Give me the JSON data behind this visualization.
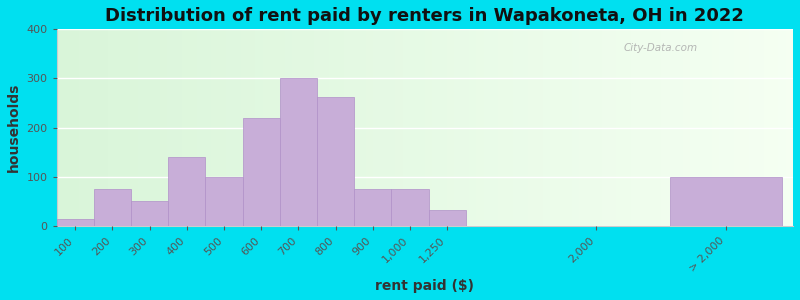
{
  "title": "Distribution of rent paid by renters in Wapakoneta, OH in 2022",
  "xlabel": "rent paid ($)",
  "ylabel": "households",
  "bar_labels": [
    "100",
    "200",
    "300",
    "400",
    "500",
    "600",
    "700",
    "800",
    "900",
    "1,000",
    "1,250",
    "2,000",
    "> 2,000"
  ],
  "bar_values": [
    15,
    75,
    50,
    140,
    100,
    220,
    300,
    262,
    75,
    75,
    32,
    0,
    100
  ],
  "bar_color": "#c8aed8",
  "bar_edge_color": "#b090c8",
  "ylim": [
    0,
    400
  ],
  "yticks": [
    0,
    100,
    200,
    300,
    400
  ],
  "background_outer": "#00e0f0",
  "watermark": "City-Data.com",
  "title_fontsize": 13,
  "axis_label_fontsize": 10,
  "tick_fontsize": 8
}
